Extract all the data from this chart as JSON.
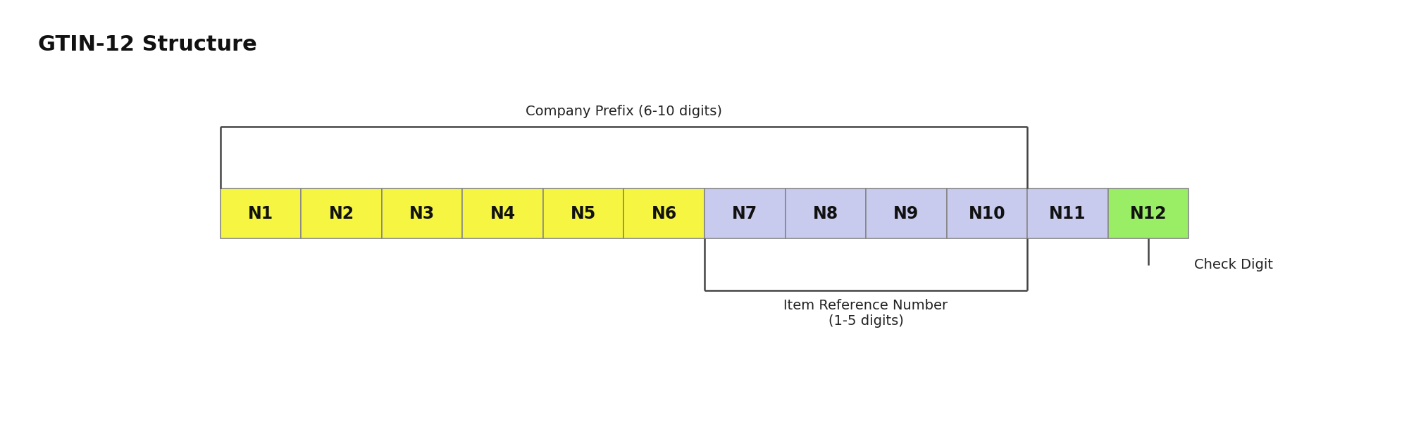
{
  "title": "GTIN-12 Structure",
  "title_fontsize": 22,
  "title_fontweight": "bold",
  "background_color": "#ffffff",
  "cells": [
    {
      "label": "N1",
      "color": "#f5f542"
    },
    {
      "label": "N2",
      "color": "#f5f542"
    },
    {
      "label": "N3",
      "color": "#f5f542"
    },
    {
      "label": "N4",
      "color": "#f5f542"
    },
    {
      "label": "N5",
      "color": "#f5f542"
    },
    {
      "label": "N6",
      "color": "#f5f542"
    },
    {
      "label": "N7",
      "color": "#c8caee"
    },
    {
      "label": "N8",
      "color": "#c8caee"
    },
    {
      "label": "N9",
      "color": "#c8caee"
    },
    {
      "label": "N10",
      "color": "#c8caee"
    },
    {
      "label": "N11",
      "color": "#c8caee"
    },
    {
      "label": "N12",
      "color": "#99ee66"
    }
  ],
  "bracket_color": "#444444",
  "bracket_lw": 1.8,
  "company_prefix_label": "Company Prefix (6-10 digits)",
  "item_ref_label": "Item Reference Number\n(1-5 digits)",
  "check_digit_label": "Check Digit",
  "annotation_fontsize": 14,
  "label_fontsize": 17,
  "label_fontweight": "bold",
  "figsize": [
    20,
    6
  ],
  "dpi": 100
}
